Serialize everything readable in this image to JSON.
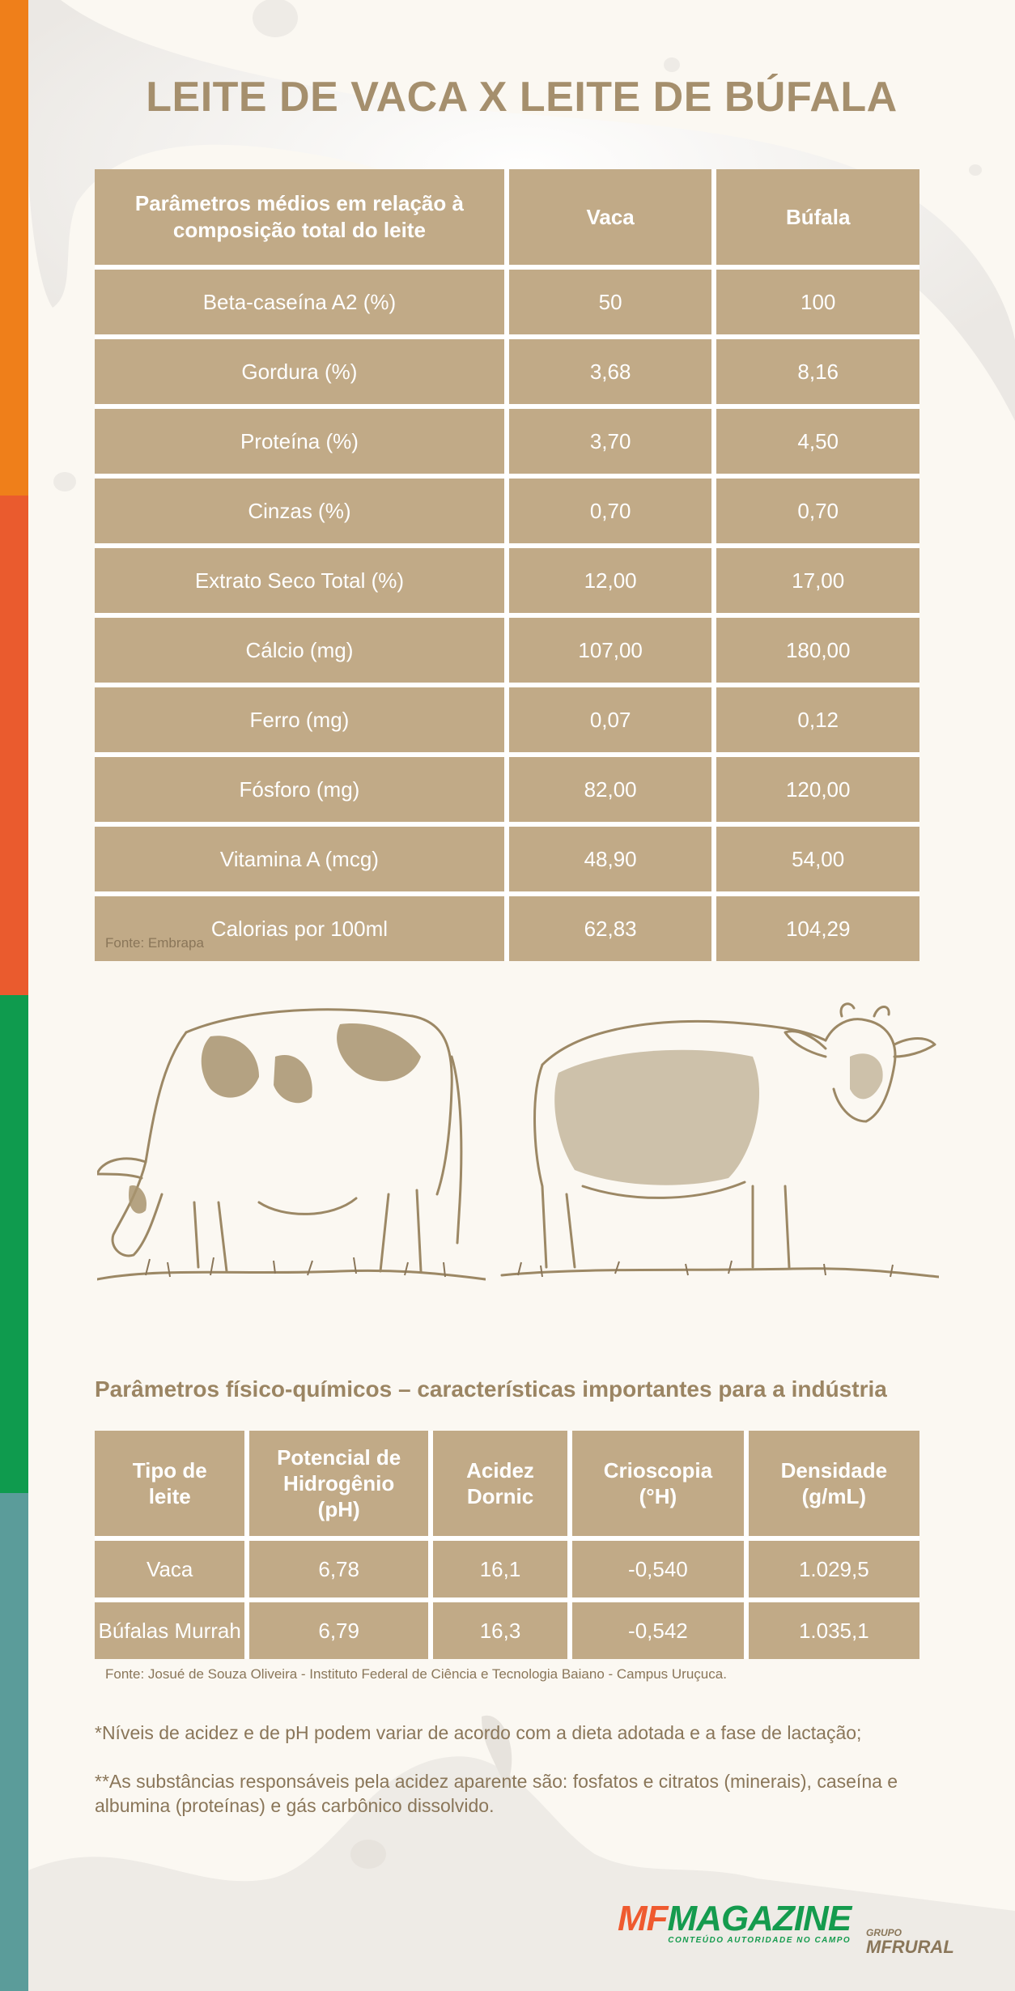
{
  "title": "LEITE DE VACA X LEITE DE BÚFALA",
  "table1": {
    "headers": [
      "Parâmetros médios em relação à composição total do leite",
      "Vaca",
      "Búfala"
    ],
    "rows": [
      [
        "Beta-caseína A2 (%)",
        "50",
        "100"
      ],
      [
        "Gordura (%)",
        "3,68",
        "8,16"
      ],
      [
        "Proteína (%)",
        "3,70",
        "4,50"
      ],
      [
        "Cinzas (%)",
        "0,70",
        "0,70"
      ],
      [
        "Extrato Seco Total (%)",
        "12,00",
        "17,00"
      ],
      [
        "Cálcio (mg)",
        "107,00",
        "180,00"
      ],
      [
        "Ferro (mg)",
        "0,07",
        "0,12"
      ],
      [
        "Fósforo (mg)",
        "82,00",
        "120,00"
      ],
      [
        "Vitamina A (mcg)",
        "48,90",
        "54,00"
      ],
      [
        "Calorias por 100ml",
        "62,83",
        "104,29"
      ]
    ],
    "source": "Fonte: Embrapa"
  },
  "illustrations": {
    "left": "cow-grazing-illustration",
    "right": "buffalo-illustration"
  },
  "section2": {
    "subtitle": "Parâmetros físico-químicos – características importantes para a indústria",
    "headers": [
      "Tipo de leite",
      "Potencial de Hidrogênio (pH)",
      "Acidez Dornic",
      "Crioscopia (°H)",
      "Densidade (g/mL)"
    ],
    "rows": [
      [
        "Vaca",
        "6,78",
        "16,1",
        "-0,540",
        "1.029,5"
      ],
      [
        "Búfalas Murrah",
        "6,79",
        "16,3",
        "-0,542",
        "1.035,1"
      ]
    ],
    "source": "Fonte: Josué de Souza Oliveira - Instituto Federal de Ciência e Tecnologia Baiano - Campus Uruçuca."
  },
  "notes": {
    "note1": "*Níveis de acidez e de pH podem variar de acordo com a dieta adotada e a fase de lactação;",
    "note2": "**As substâncias responsáveis pela acidez aparente são: fosfatos e citratos (minerais), caseína e albumina (proteínas) e gás carbônico dissolvido."
  },
  "logos": {
    "mf_prefix": "MF",
    "mf_name": "MAGAZINE",
    "mf_tagline": "CONTEÚDO AUTORIDADE NO CAMPO",
    "grupo": "GRUPO",
    "grupo_name": "MFRURAL"
  },
  "colors": {
    "table_bg": "#c1aa87",
    "title": "#a58f6d",
    "stripe_orange": "#ef7f1a",
    "stripe_red": "#ea5b2e",
    "stripe_green": "#0f9b4e",
    "stripe_teal": "#5b9c9a"
  }
}
